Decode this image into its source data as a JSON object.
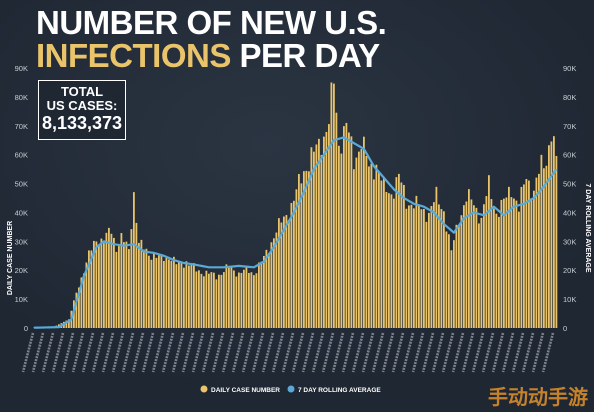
{
  "title": {
    "line1": "NUMBER OF NEW U.S.",
    "line2_highlight": "INFECTIONS",
    "line2_rest": " PER DAY"
  },
  "total_box": {
    "label_line1": "TOTAL",
    "label_line2": "US CASES:",
    "value": "8,133,373"
  },
  "watermark": "手动动手游",
  "colors": {
    "background": "#1f2733",
    "bar": "#e9c46a",
    "line": "#5aa9d6",
    "text": "#ffffff",
    "tick_text": "#c8cdd4"
  },
  "chart_data": {
    "type": "bar",
    "title": "NUMBER OF NEW U.S. INFECTIONS PER DAY",
    "ylabel_left": "DAILY CASE NUMBER",
    "ylabel_right": "7 DAY ROLLING AVERAGE",
    "ylim": [
      0,
      90000
    ],
    "yticks": [
      "0",
      "10K",
      "20K",
      "30K",
      "40K",
      "50K",
      "60K",
      "70K",
      "80K",
      "90K"
    ],
    "x_range": [
      "Mar 2",
      "Oct 17"
    ],
    "legend": [
      {
        "label": "DAILY CASE NUMBER",
        "color": "#e9c46a",
        "kind": "bar"
      },
      {
        "label": "7 DAY ROLLING AVERAGE",
        "color": "#5aa9d6",
        "kind": "line"
      }
    ],
    "legend_position": "bottom-center",
    "grid": false,
    "daily_keyframes": [
      [
        0,
        100
      ],
      [
        8,
        400
      ],
      [
        14,
        3000
      ],
      [
        18,
        15000
      ],
      [
        22,
        25000
      ],
      [
        25,
        31000
      ],
      [
        28,
        30000
      ],
      [
        31,
        34000
      ],
      [
        33,
        28000
      ],
      [
        35,
        31000
      ],
      [
        38,
        27000
      ],
      [
        40,
        47000
      ],
      [
        42,
        29000
      ],
      [
        46,
        26000
      ],
      [
        50,
        24000
      ],
      [
        54,
        25000
      ],
      [
        57,
        22000
      ],
      [
        61,
        23000
      ],
      [
        65,
        20000
      ],
      [
        69,
        19000
      ],
      [
        73,
        18000
      ],
      [
        78,
        21000
      ],
      [
        82,
        19000
      ],
      [
        85,
        20000
      ],
      [
        88,
        19000
      ],
      [
        92,
        24000
      ],
      [
        96,
        32000
      ],
      [
        100,
        38000
      ],
      [
        104,
        44000
      ],
      [
        108,
        55000
      ],
      [
        112,
        60000
      ],
      [
        116,
        67000
      ],
      [
        118,
        71000
      ],
      [
        120,
        85000
      ],
      [
        122,
        64000
      ],
      [
        125,
        70000
      ],
      [
        128,
        58000
      ],
      [
        131,
        65000
      ],
      [
        134,
        55000
      ],
      [
        137,
        57000
      ],
      [
        140,
        48000
      ],
      [
        143,
        47000
      ],
      [
        146,
        52000
      ],
      [
        149,
        44000
      ],
      [
        152,
        43000
      ],
      [
        155,
        41000
      ],
      [
        158,
        40000
      ],
      [
        161,
        45000
      ],
      [
        164,
        41000
      ],
      [
        167,
        26000
      ],
      [
        170,
        38000
      ],
      [
        173,
        45000
      ],
      [
        176,
        43000
      ],
      [
        179,
        38000
      ],
      [
        182,
        49000
      ],
      [
        185,
        40000
      ],
      [
        188,
        43000
      ],
      [
        191,
        49000
      ],
      [
        194,
        41000
      ],
      [
        197,
        53000
      ],
      [
        200,
        47000
      ],
      [
        203,
        56000
      ],
      [
        205,
        59000
      ],
      [
        207,
        68000
      ],
      [
        209,
        57000
      ]
    ],
    "rolling_average_keyframes": [
      [
        0,
        100
      ],
      [
        10,
        300
      ],
      [
        15,
        3000
      ],
      [
        20,
        18000
      ],
      [
        25,
        28000
      ],
      [
        28,
        30000
      ],
      [
        32,
        29000
      ],
      [
        36,
        28500
      ],
      [
        40,
        29000
      ],
      [
        44,
        26500
      ],
      [
        48,
        26000
      ],
      [
        52,
        25000
      ],
      [
        56,
        23500
      ],
      [
        60,
        22500
      ],
      [
        64,
        22000
      ],
      [
        70,
        21000
      ],
      [
        76,
        21000
      ],
      [
        82,
        21500
      ],
      [
        88,
        21000
      ],
      [
        92,
        23000
      ],
      [
        96,
        28000
      ],
      [
        100,
        34000
      ],
      [
        104,
        40000
      ],
      [
        108,
        47000
      ],
      [
        112,
        55000
      ],
      [
        116,
        60000
      ],
      [
        120,
        65000
      ],
      [
        124,
        66000
      ],
      [
        128,
        64000
      ],
      [
        132,
        62000
      ],
      [
        136,
        56000
      ],
      [
        140,
        52000
      ],
      [
        144,
        48000
      ],
      [
        148,
        45000
      ],
      [
        152,
        43000
      ],
      [
        156,
        42000
      ],
      [
        160,
        40000
      ],
      [
        164,
        36000
      ],
      [
        168,
        33000
      ],
      [
        172,
        38000
      ],
      [
        176,
        40000
      ],
      [
        180,
        39000
      ],
      [
        184,
        42000
      ],
      [
        188,
        39000
      ],
      [
        192,
        42000
      ],
      [
        196,
        43000
      ],
      [
        200,
        45000
      ],
      [
        204,
        49000
      ],
      [
        209,
        55000
      ]
    ],
    "num_days": 210
  }
}
